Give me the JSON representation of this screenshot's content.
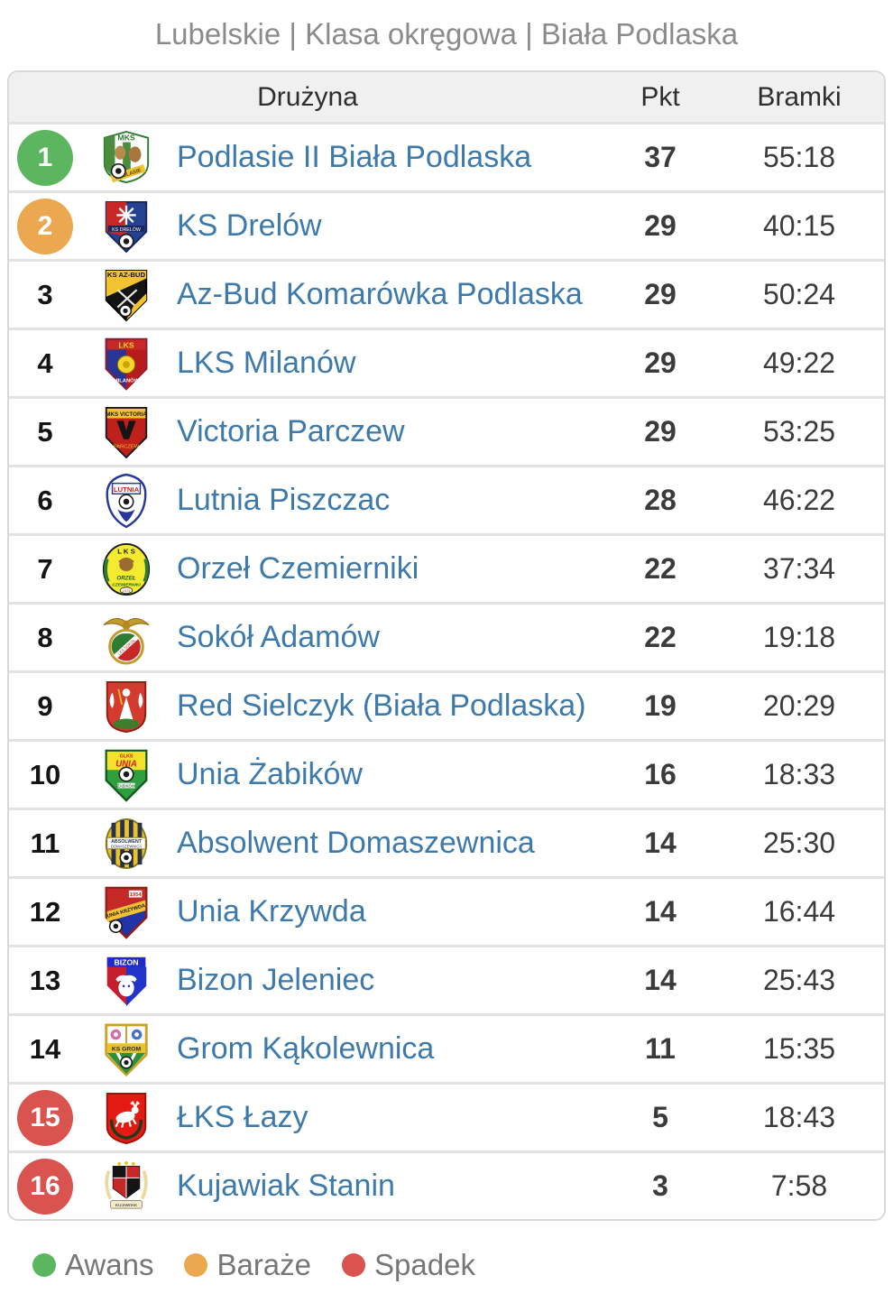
{
  "title": "Lubelskie | Klasa okręgowa | Biała Podlaska",
  "colors": {
    "team_link": "#3d7aab",
    "awans": "#5cb660",
    "baraze": "#eca851",
    "spadek": "#d9534f",
    "header_bg": "#f0f0f0",
    "border": "#d9d9d9"
  },
  "table": {
    "headers": {
      "team": "Drużyna",
      "points": "Pkt",
      "goals": "Bramki"
    },
    "rows": [
      {
        "pos": "1",
        "zone": "awans",
        "crest": "podlasie",
        "team": "Podlasie II Biała Podlaska",
        "points": "37",
        "goals": "55:18"
      },
      {
        "pos": "2",
        "zone": "baraze",
        "crest": "drelow",
        "team": "KS Drelów",
        "points": "29",
        "goals": "40:15"
      },
      {
        "pos": "3",
        "zone": null,
        "crest": "azbud",
        "team": "Az-Bud Komarówka Podlaska",
        "points": "29",
        "goals": "50:24"
      },
      {
        "pos": "4",
        "zone": null,
        "crest": "milanow",
        "team": "LKS Milanów",
        "points": "29",
        "goals": "49:22"
      },
      {
        "pos": "5",
        "zone": null,
        "crest": "victoria",
        "team": "Victoria Parczew",
        "points": "29",
        "goals": "53:25"
      },
      {
        "pos": "6",
        "zone": null,
        "crest": "lutnia",
        "team": "Lutnia Piszczac",
        "points": "28",
        "goals": "46:22"
      },
      {
        "pos": "7",
        "zone": null,
        "crest": "orzel",
        "team": "Orzeł Czemierniki",
        "points": "22",
        "goals": "37:34"
      },
      {
        "pos": "8",
        "zone": null,
        "crest": "sokol",
        "team": "Sokół Adamów",
        "points": "22",
        "goals": "19:18"
      },
      {
        "pos": "9",
        "zone": null,
        "crest": "sielczyk",
        "team": "Red Sielczyk (Biała Podlaska)",
        "points": "19",
        "goals": "20:29"
      },
      {
        "pos": "10",
        "zone": null,
        "crest": "zabikow",
        "team": "Unia Żabików",
        "points": "16",
        "goals": "18:33"
      },
      {
        "pos": "11",
        "zone": null,
        "crest": "absolwent",
        "team": "Absolwent Domaszewnica",
        "points": "14",
        "goals": "25:30"
      },
      {
        "pos": "12",
        "zone": null,
        "crest": "krzywda",
        "team": "Unia Krzywda",
        "points": "14",
        "goals": "16:44"
      },
      {
        "pos": "13",
        "zone": null,
        "crest": "bizon",
        "team": "Bizon Jeleniec",
        "points": "14",
        "goals": "25:43"
      },
      {
        "pos": "14",
        "zone": null,
        "crest": "grom",
        "team": "Grom Kąkolewnica",
        "points": "11",
        "goals": "15:35"
      },
      {
        "pos": "15",
        "zone": "spadek",
        "crest": "lazy",
        "team": "ŁKS Łazy",
        "points": "5",
        "goals": "18:43"
      },
      {
        "pos": "16",
        "zone": "spadek",
        "crest": "kujawiak",
        "team": "Kujawiak Stanin",
        "points": "3",
        "goals": "7:58"
      }
    ]
  },
  "legend": [
    {
      "label": "Awans",
      "color": "#5cb660"
    },
    {
      "label": "Baraże",
      "color": "#eca851"
    },
    {
      "label": "Spadek",
      "color": "#d9534f"
    }
  ]
}
